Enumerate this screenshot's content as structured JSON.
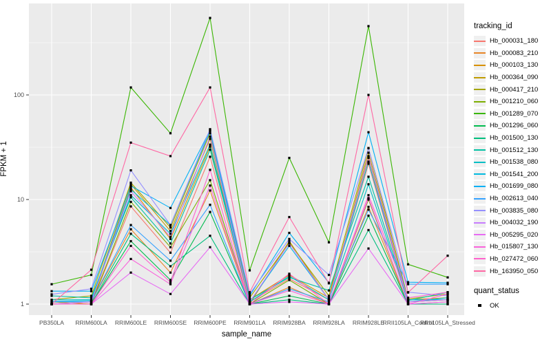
{
  "chart_data": {
    "type": "line",
    "title": "",
    "xlabel": "sample_name",
    "ylabel": "FPKM + 1",
    "y_scale": "log10",
    "y_ticks": [
      "1",
      "10",
      "100"
    ],
    "y_tick_values": [
      1,
      10,
      100
    ],
    "y_minor_values": [
      3.162,
      31.62,
      316.2
    ],
    "grid": true,
    "panel_bg": "#EBEBEB",
    "grid_color": "#FFFFFF",
    "point_color": "#000000",
    "axis_text_color": "#4D4D4D",
    "legend_position": "right",
    "categories": [
      "PB350LA",
      "RRIM600LA",
      "RRIM600LE",
      "RRIM600SE",
      "RRIM600PE",
      "RRIM901LA",
      "RRIM928BA",
      "RRIM928LA",
      "RRIM928LE",
      "RRII105LA_Control",
      "RRII105LA_Stressed"
    ],
    "series": [
      {
        "name": "Hb_000031_180",
        "color": "#F8766D",
        "values": [
          1.0,
          1.0,
          8.6,
          3.1,
          25.6,
          1.05,
          1.75,
          1.1,
          22,
          1.05,
          1.1
        ]
      },
      {
        "name": "Hb_000083_210",
        "color": "#E88526",
        "values": [
          1.0,
          1.05,
          5.2,
          2.0,
          12.2,
          1.0,
          1.45,
          1.0,
          8.5,
          1.0,
          1.05
        ]
      },
      {
        "name": "Hb_000103_130",
        "color": "#D89000",
        "values": [
          1.05,
          1.0,
          13.0,
          4.2,
          32,
          1.1,
          1.9,
          1.15,
          25,
          1.1,
          1.15
        ]
      },
      {
        "name": "Hb_000364_090",
        "color": "#C09B00",
        "values": [
          1.0,
          1.05,
          14.0,
          5.0,
          38,
          1.0,
          4.0,
          1.1,
          28,
          1.05,
          1.1
        ]
      },
      {
        "name": "Hb_000417_210",
        "color": "#A3A500",
        "values": [
          1.1,
          1.2,
          14.5,
          5.4,
          43,
          1.15,
          3.9,
          1.2,
          31,
          1.12,
          1.25
        ]
      },
      {
        "name": "Hb_001210_060",
        "color": "#7CAE00",
        "values": [
          1.0,
          1.0,
          9.5,
          3.5,
          15.3,
          1.0,
          1.7,
          1.0,
          10.0,
          1.0,
          1.0
        ]
      },
      {
        "name": "Hb_001289_070",
        "color": "#39B600",
        "values": [
          1.55,
          1.9,
          118,
          43,
          545,
          2.1,
          25,
          3.9,
          455,
          2.4,
          1.8
        ]
      },
      {
        "name": "Hb_001296_060",
        "color": "#00BB4E",
        "values": [
          1.0,
          1.0,
          4.0,
          1.7,
          7.6,
          1.0,
          1.2,
          1.0,
          7.0,
          1.0,
          1.0
        ]
      },
      {
        "name": "Hb_001500_130",
        "color": "#00BF7D",
        "values": [
          1.0,
          1.0,
          4.7,
          2.3,
          4.5,
          1.0,
          1.1,
          1.0,
          5.1,
          1.0,
          1.0
        ]
      },
      {
        "name": "Hb_001512_130",
        "color": "#00C1A3",
        "values": [
          1.2,
          1.15,
          10.5,
          3.8,
          30,
          1.1,
          1.8,
          1.35,
          16.5,
          1.08,
          1.3
        ]
      },
      {
        "name": "Hb_001538_080",
        "color": "#00BFC4",
        "values": [
          1.1,
          1.1,
          11.0,
          4.7,
          33.5,
          1.05,
          1.85,
          1.1,
          14.0,
          1.05,
          1.15
        ]
      },
      {
        "name": "Hb_001541_200",
        "color": "#00BAE0",
        "values": [
          1.06,
          1.08,
          12.5,
          5.7,
          45,
          1.05,
          3.6,
          1.1,
          23,
          1.1,
          1.1
        ]
      },
      {
        "name": "Hb_001699_080",
        "color": "#00B0F6",
        "values": [
          1.33,
          1.33,
          13.5,
          8.3,
          46,
          1.2,
          4.8,
          1.6,
          44,
          1.62,
          1.6
        ]
      },
      {
        "name": "Hb_002613_040",
        "color": "#35A2FF",
        "values": [
          1.05,
          1.05,
          5.7,
          2.6,
          8.9,
          1.0,
          1.4,
          1.05,
          8.0,
          1.55,
          1.55
        ]
      },
      {
        "name": "Hb_003835_080",
        "color": "#9590FF",
        "values": [
          1.24,
          1.4,
          19.0,
          5.7,
          47,
          1.25,
          4.2,
          1.9,
          31,
          1.3,
          1.2
        ]
      },
      {
        "name": "Hb_004032_190",
        "color": "#C77CFF",
        "values": [
          1.0,
          1.05,
          12.0,
          4.4,
          40,
          1.05,
          3.8,
          1.1,
          26,
          1.05,
          1.1
        ]
      },
      {
        "name": "Hb_005295_020",
        "color": "#E76BF3",
        "values": [
          1.0,
          1.0,
          2.0,
          1.25,
          3.5,
          1.0,
          1.05,
          1.0,
          3.4,
          1.0,
          1.05
        ]
      },
      {
        "name": "Hb_015807_130",
        "color": "#FA62DB",
        "values": [
          1.0,
          1.0,
          2.7,
          1.55,
          13.6,
          1.0,
          1.35,
          1.0,
          10.3,
          1.0,
          1.25
        ]
      },
      {
        "name": "Hb_027472_060",
        "color": "#FF61CC",
        "values": [
          1.0,
          1.0,
          3.6,
          1.62,
          19.2,
          1.0,
          1.95,
          1.0,
          11.0,
          1.15,
          1.3
        ]
      },
      {
        "name": "Hb_163950_050",
        "color": "#FF67A4",
        "values": [
          1.0,
          2.13,
          35,
          26,
          118,
          1.3,
          6.8,
          1.58,
          100,
          1.29,
          2.9
        ]
      }
    ]
  },
  "legend": {
    "tracking_title": "tracking_id",
    "quant_title": "quant_status",
    "quant_items": [
      {
        "label": "OK"
      }
    ]
  }
}
